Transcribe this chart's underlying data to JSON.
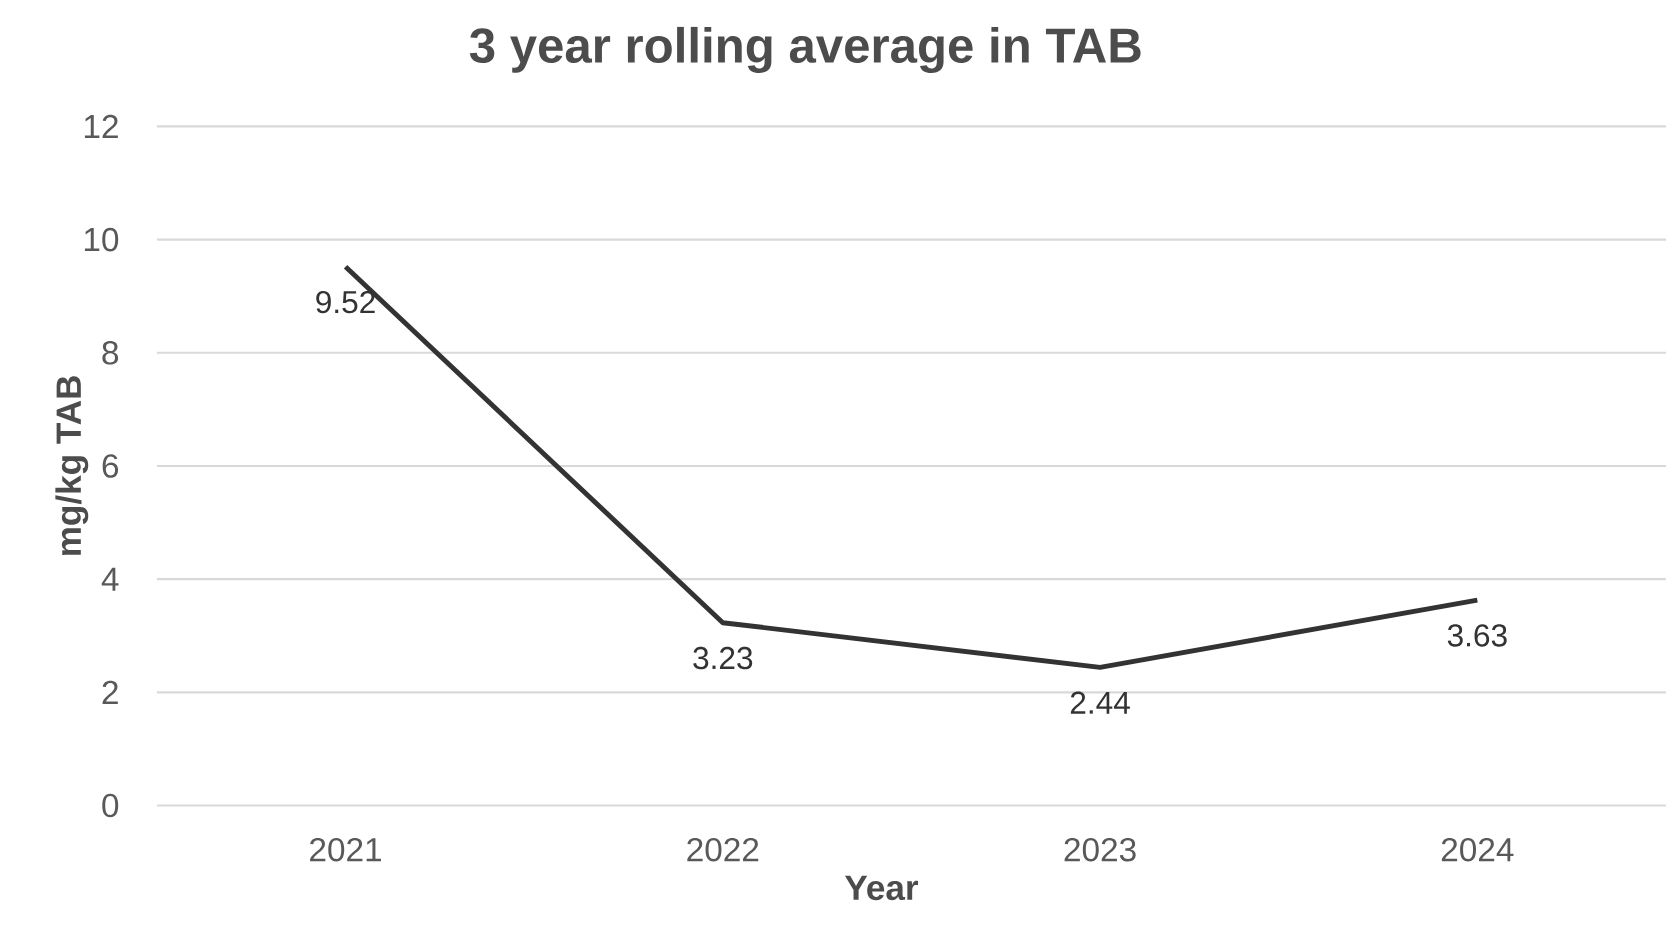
{
  "chart_data": {
    "type": "line",
    "title": "3 year rolling average in TAB",
    "xlabel": "Year",
    "ylabel": "mg/kg TAB",
    "categories": [
      "2021",
      "2022",
      "2023",
      "2024"
    ],
    "values": [
      9.52,
      3.23,
      2.44,
      3.63
    ],
    "color": "#333333",
    "ylim": [
      0,
      12
    ],
    "yticks": [
      0,
      2,
      4,
      6,
      8,
      10,
      12
    ],
    "grid": "y",
    "data_labels": true,
    "marker": "none",
    "line_style": "solid"
  }
}
